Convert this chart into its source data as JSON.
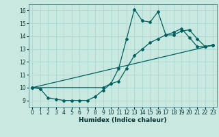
{
  "xlabel": "Humidex (Indice chaleur)",
  "bg_color": "#c8e8e0",
  "line_color": "#006060",
  "grid_color": "#a8d8d0",
  "xlim": [
    -0.5,
    23.5
  ],
  "ylim": [
    8.5,
    16.5
  ],
  "yticks": [
    9,
    10,
    11,
    12,
    13,
    14,
    15,
    16
  ],
  "xticks": [
    0,
    1,
    2,
    3,
    4,
    5,
    6,
    7,
    8,
    9,
    10,
    11,
    12,
    13,
    14,
    15,
    16,
    17,
    18,
    19,
    20,
    21,
    22,
    23
  ],
  "line1_x": [
    0,
    1,
    2,
    3,
    4,
    5,
    6,
    7,
    8,
    9,
    10,
    11,
    12,
    13,
    14,
    15,
    16,
    17,
    18,
    19,
    20,
    21,
    22,
    23
  ],
  "line1_y": [
    10.0,
    9.9,
    9.2,
    9.1,
    9.0,
    9.0,
    9.0,
    9.0,
    9.3,
    9.8,
    10.3,
    11.5,
    13.8,
    16.1,
    15.2,
    15.1,
    15.9,
    14.1,
    14.3,
    14.6,
    13.9,
    13.2,
    13.2,
    13.3
  ],
  "line2_x": [
    0,
    9,
    10,
    11,
    12,
    13,
    14,
    15,
    16,
    17,
    18,
    19,
    20,
    21,
    22,
    23
  ],
  "line2_y": [
    10.0,
    10.0,
    10.3,
    10.5,
    11.5,
    12.5,
    13.0,
    13.5,
    13.8,
    14.1,
    14.1,
    14.4,
    14.5,
    13.8,
    13.2,
    13.3
  ],
  "line3_x": [
    0,
    23
  ],
  "line3_y": [
    10.0,
    13.3
  ]
}
